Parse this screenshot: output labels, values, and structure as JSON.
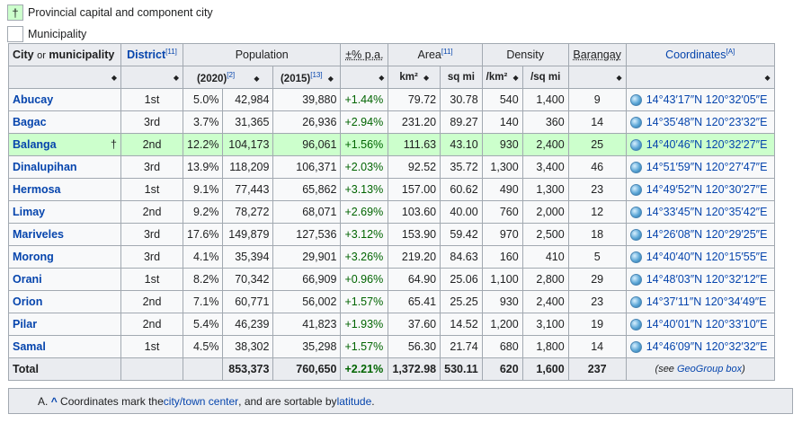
{
  "legend": {
    "capital_symbol": "†",
    "capital_label": "Provincial capital and component city",
    "municipality_label": "Municipality"
  },
  "headers": {
    "city": "City",
    "or": "or",
    "municipality": "municipality",
    "district": "District",
    "district_ref": "[11]",
    "population": "Population",
    "pct_pa": "±% p.a.",
    "area": "Area",
    "area_ref": "[11]",
    "density": "Density",
    "barangay": "Barangay",
    "coordinates": "Coordinates",
    "coordinates_ref": "[A]",
    "pop2020": "(2020)",
    "pop2020_ref": "[2]",
    "pop2015": "(2015)",
    "pop2015_ref": "[13]",
    "km2": "km²",
    "sqmi": "sq mi",
    "per_km2": "/km²",
    "per_sqmi": "/sq mi"
  },
  "rows": [
    {
      "name": "Abucay",
      "capital": "",
      "district": "1st",
      "pct": "5.0%",
      "pop2020": "42,984",
      "pop2015": "39,880",
      "growth": "+1.44%",
      "km2": "79.72",
      "sqmi": "30.78",
      "dkm": "540",
      "dmi": "1,400",
      "brgy": "9",
      "coord": "14°43′17″N 120°32′05″E"
    },
    {
      "name": "Bagac",
      "capital": "",
      "district": "3rd",
      "pct": "3.7%",
      "pop2020": "31,365",
      "pop2015": "26,936",
      "growth": "+2.94%",
      "km2": "231.20",
      "sqmi": "89.27",
      "dkm": "140",
      "dmi": "360",
      "brgy": "14",
      "coord": "14°35′48″N 120°23′32″E"
    },
    {
      "name": "Balanga",
      "capital": "†",
      "district": "2nd",
      "pct": "12.2%",
      "pop2020": "104,173",
      "pop2015": "96,061",
      "growth": "+1.56%",
      "km2": "111.63",
      "sqmi": "43.10",
      "dkm": "930",
      "dmi": "2,400",
      "brgy": "25",
      "coord": "14°40′46″N 120°32′27″E"
    },
    {
      "name": "Dinalupihan",
      "capital": "",
      "district": "3rd",
      "pct": "13.9%",
      "pop2020": "118,209",
      "pop2015": "106,371",
      "growth": "+2.03%",
      "km2": "92.52",
      "sqmi": "35.72",
      "dkm": "1,300",
      "dmi": "3,400",
      "brgy": "46",
      "coord": "14°51′59″N 120°27′47″E"
    },
    {
      "name": "Hermosa",
      "capital": "",
      "district": "1st",
      "pct": "9.1%",
      "pop2020": "77,443",
      "pop2015": "65,862",
      "growth": "+3.13%",
      "km2": "157.00",
      "sqmi": "60.62",
      "dkm": "490",
      "dmi": "1,300",
      "brgy": "23",
      "coord": "14°49′52″N 120°30′27″E"
    },
    {
      "name": "Limay",
      "capital": "",
      "district": "2nd",
      "pct": "9.2%",
      "pop2020": "78,272",
      "pop2015": "68,071",
      "growth": "+2.69%",
      "km2": "103.60",
      "sqmi": "40.00",
      "dkm": "760",
      "dmi": "2,000",
      "brgy": "12",
      "coord": "14°33′45″N 120°35′42″E"
    },
    {
      "name": "Mariveles",
      "capital": "",
      "district": "3rd",
      "pct": "17.6%",
      "pop2020": "149,879",
      "pop2015": "127,536",
      "growth": "+3.12%",
      "km2": "153.90",
      "sqmi": "59.42",
      "dkm": "970",
      "dmi": "2,500",
      "brgy": "18",
      "coord": "14°26′08″N 120°29′25″E"
    },
    {
      "name": "Morong",
      "capital": "",
      "district": "3rd",
      "pct": "4.1%",
      "pop2020": "35,394",
      "pop2015": "29,901",
      "growth": "+3.26%",
      "km2": "219.20",
      "sqmi": "84.63",
      "dkm": "160",
      "dmi": "410",
      "brgy": "5",
      "coord": "14°40′40″N 120°15′55″E"
    },
    {
      "name": "Orani",
      "capital": "",
      "district": "1st",
      "pct": "8.2%",
      "pop2020": "70,342",
      "pop2015": "66,909",
      "growth": "+0.96%",
      "km2": "64.90",
      "sqmi": "25.06",
      "dkm": "1,100",
      "dmi": "2,800",
      "brgy": "29",
      "coord": "14°48′03″N 120°32′12″E"
    },
    {
      "name": "Orion",
      "capital": "",
      "district": "2nd",
      "pct": "7.1%",
      "pop2020": "60,771",
      "pop2015": "56,002",
      "growth": "+1.57%",
      "km2": "65.41",
      "sqmi": "25.25",
      "dkm": "930",
      "dmi": "2,400",
      "brgy": "23",
      "coord": "14°37′11″N 120°34′49″E"
    },
    {
      "name": "Pilar",
      "capital": "",
      "district": "2nd",
      "pct": "5.4%",
      "pop2020": "46,239",
      "pop2015": "41,823",
      "growth": "+1.93%",
      "km2": "37.60",
      "sqmi": "14.52",
      "dkm": "1,200",
      "dmi": "3,100",
      "brgy": "19",
      "coord": "14°40′01″N 120°33′10″E"
    },
    {
      "name": "Samal",
      "capital": "",
      "district": "1st",
      "pct": "4.5%",
      "pop2020": "38,302",
      "pop2015": "35,298",
      "growth": "+1.57%",
      "km2": "56.30",
      "sqmi": "21.74",
      "dkm": "680",
      "dmi": "1,800",
      "brgy": "14",
      "coord": "14°46′09″N 120°32′32″E"
    }
  ],
  "total": {
    "label": "Total",
    "pop2020": "853,373",
    "pop2015": "760,650",
    "growth": "+2.21%",
    "km2": "1,372.98",
    "sqmi": "530.11",
    "dkm": "620",
    "dmi": "1,600",
    "brgy": "237",
    "note_pre": "(see ",
    "note_link": "GeoGroup box",
    "note_post": ")"
  },
  "footnote": {
    "marker": "A.",
    "caret": "^",
    "text_1": "Coordinates mark the ",
    "link_1": "city/town center",
    "text_2": ", and are sortable by ",
    "link_2": "latitude",
    "text_3": "."
  }
}
